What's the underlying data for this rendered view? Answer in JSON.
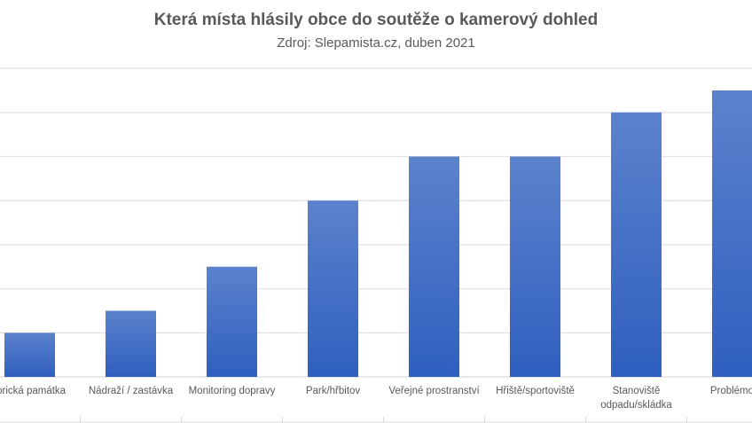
{
  "chart_data": {
    "type": "bar",
    "title": "Která místa hlásily obce do soutěže o kamerový dohled",
    "subtitle": "Zdroj:  Slepamista.cz, duben 2021",
    "categories": [
      "Historická památka",
      "Nádraží / zastávka",
      "Monitoring dopravy",
      "Park/hřbitov",
      "Veřejné prostranství",
      "Hřiště/sportoviště",
      "Stanoviště odpadu/skládka",
      "Problémová"
    ],
    "category_lines": [
      [
        "torická památka"
      ],
      [
        "Nádraží / zastávka"
      ],
      [
        "Monitoring dopravy"
      ],
      [
        "Park/hřbitov"
      ],
      [
        "Veřejné prostranství"
      ],
      [
        "Hřiště/sportoviště"
      ],
      [
        "Stanoviště",
        "odpadu/skládka"
      ],
      [
        "Problémová"
      ]
    ],
    "values": [
      1,
      1.5,
      2.5,
      4,
      5,
      5,
      6,
      6.5
    ],
    "ylim": [
      0,
      7
    ],
    "grid": true,
    "bar_color_top": "#5b82cc",
    "bar_color_bottom": "#2f5fbf",
    "xlabel": "",
    "ylabel": ""
  }
}
